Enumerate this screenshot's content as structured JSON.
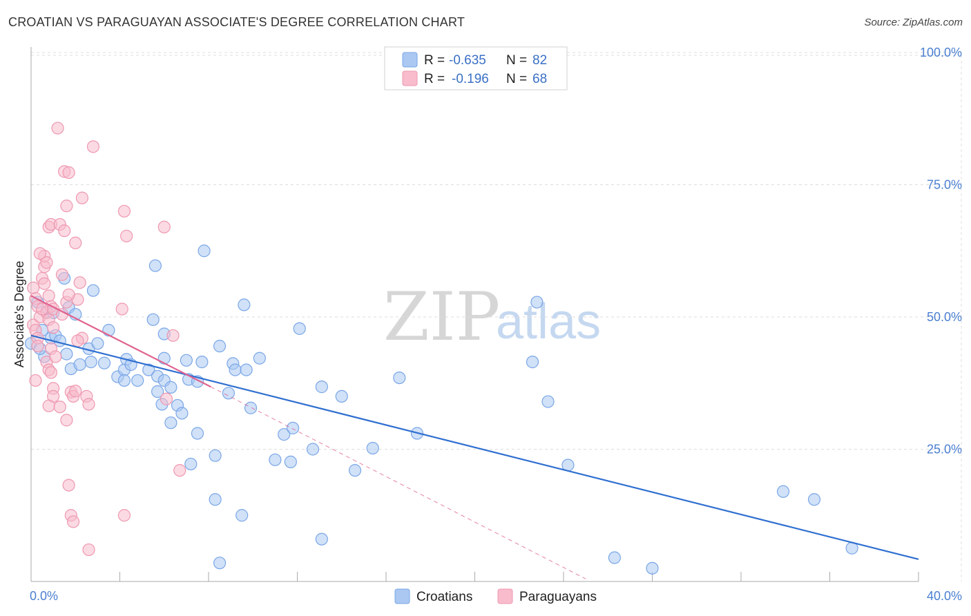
{
  "title": "CROATIAN VS PARAGUAYAN ASSOCIATE'S DEGREE CORRELATION CHART",
  "source": "Source: ZipAtlas.com",
  "watermark": {
    "zip": "ZIP",
    "atlas": "atlas"
  },
  "colors": {
    "croatians_fill": "#aac8f2",
    "croatians_stroke": "#7aa6e6",
    "croatians_line": "#2f6fd0",
    "paraguayans_fill": "#f8bccc",
    "paraguayans_stroke": "#ee98b0",
    "paraguayans_line": "#e0628e",
    "grid": "#dddddd",
    "axis_text": "#4a7fd0"
  },
  "legend": {
    "items": [
      {
        "r_label": "R =",
        "r_value": "-0.635",
        "n_label": "N =",
        "n_value": "82"
      },
      {
        "r_label": "R =",
        "r_value": "-0.196",
        "n_label": "N =",
        "n_value": "68"
      }
    ]
  },
  "bottom_legend": [
    "Croatians",
    "Paraguayans"
  ],
  "chart_data": {
    "type": "scatter",
    "title": "CROATIAN VS PARAGUAYAN ASSOCIATE'S DEGREE CORRELATION CHART",
    "xlabel": "",
    "ylabel": "Associate's Degree",
    "xlim": [
      0,
      40
    ],
    "ylim": [
      0,
      105
    ],
    "x_tick_labels": [
      "0.0%",
      "40.0%"
    ],
    "y_ticks": [
      25,
      50,
      75,
      100
    ],
    "y_tick_labels": [
      "25.0%",
      "50.0%",
      "75.0%",
      "100.0%"
    ],
    "grid": true,
    "series": [
      {
        "name": "Croatians",
        "r": -0.635,
        "n": 82,
        "trend": {
          "x": [
            0,
            40
          ],
          "y": [
            46.5,
            4.2
          ],
          "dashed_extension": false
        },
        "points": [
          [
            0.0,
            45.0
          ],
          [
            0.3,
            52.8
          ],
          [
            0.5,
            47.5
          ],
          [
            0.7,
            51.0
          ],
          [
            0.9,
            46.0
          ],
          [
            1.1,
            46.5
          ],
          [
            0.6,
            42.5
          ],
          [
            1.7,
            51.8
          ],
          [
            1.5,
            57.3
          ],
          [
            1.8,
            40.2
          ],
          [
            2.6,
            44.0
          ],
          [
            2.7,
            41.5
          ],
          [
            2.8,
            55.0
          ],
          [
            3.3,
            41.3
          ],
          [
            3.5,
            47.5
          ],
          [
            3.9,
            38.7
          ],
          [
            4.2,
            40.0
          ],
          [
            4.2,
            38.0
          ],
          [
            4.3,
            42.0
          ],
          [
            4.8,
            38.0
          ],
          [
            5.3,
            40.0
          ],
          [
            5.7,
            38.8
          ],
          [
            5.9,
            33.5
          ],
          [
            5.5,
            49.5
          ],
          [
            6.0,
            46.8
          ],
          [
            5.6,
            59.7
          ],
          [
            5.7,
            35.9
          ],
          [
            6.0,
            42.2
          ],
          [
            6.0,
            38.0
          ],
          [
            6.3,
            36.7
          ],
          [
            6.3,
            30.0
          ],
          [
            6.6,
            33.3
          ],
          [
            6.8,
            31.8
          ],
          [
            7.0,
            41.8
          ],
          [
            7.1,
            38.2
          ],
          [
            7.5,
            37.8
          ],
          [
            7.5,
            28.0
          ],
          [
            7.7,
            41.5
          ],
          [
            7.2,
            22.2
          ],
          [
            7.8,
            62.5
          ],
          [
            8.3,
            23.8
          ],
          [
            8.3,
            15.5
          ],
          [
            8.5,
            44.5
          ],
          [
            8.5,
            3.5
          ],
          [
            8.9,
            35.6
          ],
          [
            9.1,
            41.2
          ],
          [
            9.2,
            40.0
          ],
          [
            9.5,
            12.5
          ],
          [
            9.6,
            52.3
          ],
          [
            9.9,
            32.8
          ],
          [
            9.7,
            40.0
          ],
          [
            10.3,
            42.2
          ],
          [
            11.0,
            23.0
          ],
          [
            11.4,
            27.8
          ],
          [
            11.7,
            22.6
          ],
          [
            11.8,
            29.0
          ],
          [
            12.1,
            47.8
          ],
          [
            12.7,
            25.0
          ],
          [
            13.1,
            8.0
          ],
          [
            13.1,
            36.8
          ],
          [
            14.0,
            35.0
          ],
          [
            14.6,
            21.0
          ],
          [
            15.4,
            25.2
          ],
          [
            16.6,
            38.5
          ],
          [
            17.4,
            28.0
          ],
          [
            22.6,
            41.5
          ],
          [
            22.8,
            52.8
          ],
          [
            23.3,
            34.0
          ],
          [
            24.2,
            22.0
          ],
          [
            26.3,
            4.5
          ],
          [
            28.0,
            2.5
          ],
          [
            33.9,
            17.0
          ],
          [
            35.3,
            15.5
          ],
          [
            37.0,
            6.3
          ],
          [
            0.4,
            44.0
          ],
          [
            2.0,
            50.5
          ],
          [
            1.0,
            50.8
          ],
          [
            3.0,
            45.0
          ],
          [
            1.3,
            45.5
          ],
          [
            4.5,
            41.0
          ],
          [
            2.2,
            41.0
          ],
          [
            1.6,
            43.0
          ]
        ]
      },
      {
        "name": "Paraguayans",
        "r": -0.196,
        "n": 68,
        "trend": {
          "x": [
            0,
            8.1
          ],
          "y": [
            54.0,
            36.8
          ],
          "dashed_extension": {
            "x": [
              8.1,
              25.0
            ],
            "y": [
              36.8,
              0.5
            ]
          }
        },
        "points": [
          [
            0.1,
            55.5
          ],
          [
            0.2,
            53.5
          ],
          [
            0.3,
            52.0
          ],
          [
            0.1,
            48.5
          ],
          [
            0.2,
            47.5
          ],
          [
            0.4,
            50.0
          ],
          [
            0.3,
            46.0
          ],
          [
            0.5,
            57.3
          ],
          [
            0.6,
            59.5
          ],
          [
            0.6,
            61.5
          ],
          [
            0.7,
            60.3
          ],
          [
            0.6,
            56.3
          ],
          [
            0.8,
            54.0
          ],
          [
            0.7,
            50.8
          ],
          [
            0.8,
            49.5
          ],
          [
            0.9,
            52.0
          ],
          [
            1.0,
            51.5
          ],
          [
            1.0,
            48.0
          ],
          [
            0.9,
            44.0
          ],
          [
            0.7,
            41.5
          ],
          [
            0.8,
            40.0
          ],
          [
            0.9,
            39.5
          ],
          [
            1.0,
            36.5
          ],
          [
            1.0,
            35.0
          ],
          [
            0.8,
            33.2
          ],
          [
            1.3,
            33.0
          ],
          [
            1.6,
            30.5
          ],
          [
            1.8,
            35.8
          ],
          [
            1.9,
            35.0
          ],
          [
            2.0,
            36.0
          ],
          [
            2.5,
            35.0
          ],
          [
            2.6,
            33.5
          ],
          [
            2.3,
            46.0
          ],
          [
            2.1,
            45.5
          ],
          [
            2.2,
            56.5
          ],
          [
            2.1,
            53.3
          ],
          [
            1.6,
            52.8
          ],
          [
            1.7,
            54.2
          ],
          [
            1.4,
            50.5
          ],
          [
            0.8,
            67.0
          ],
          [
            0.9,
            67.5
          ],
          [
            1.3,
            67.5
          ],
          [
            1.5,
            66.3
          ],
          [
            1.6,
            71.0
          ],
          [
            2.3,
            72.5
          ],
          [
            1.5,
            77.5
          ],
          [
            1.7,
            77.3
          ],
          [
            1.2,
            85.7
          ],
          [
            2.8,
            82.2
          ],
          [
            4.2,
            70.0
          ],
          [
            4.3,
            65.3
          ],
          [
            6.0,
            67.0
          ],
          [
            4.1,
            51.5
          ],
          [
            4.2,
            12.5
          ],
          [
            1.8,
            12.5
          ],
          [
            1.9,
            11.3
          ],
          [
            1.7,
            18.2
          ],
          [
            2.6,
            6.0
          ],
          [
            6.1,
            34.5
          ],
          [
            6.4,
            46.5
          ],
          [
            6.7,
            21.0
          ],
          [
            0.5,
            51.5
          ],
          [
            0.3,
            44.5
          ],
          [
            1.1,
            42.5
          ],
          [
            0.4,
            62.0
          ],
          [
            2.0,
            64.0
          ],
          [
            1.4,
            58.0
          ],
          [
            0.2,
            38.0
          ]
        ]
      }
    ]
  },
  "axis": {
    "ylabel": "Associate's Degree",
    "x_min_label": "0.0%",
    "x_max_label": "40.0%"
  }
}
